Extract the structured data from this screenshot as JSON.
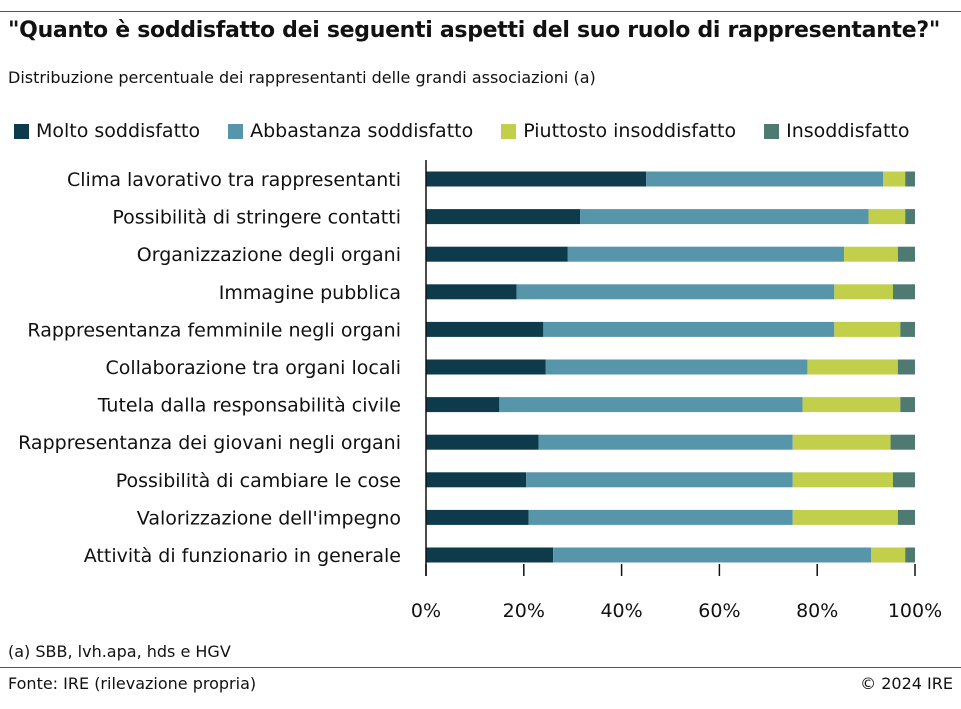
{
  "header": {
    "title": "\"Quanto è soddisfatto dei seguenti aspetti del suo ruolo di rappresentante?\"",
    "subtitle": "Distribuzione percentuale dei rappresentanti delle grandi associazioni (a)"
  },
  "footer": {
    "note": "(a) SBB, lvh.apa, hds e HGV",
    "source": "Fonte: IRE (rilevazione propria)",
    "copyright": "© 2024 IRE"
  },
  "chart_data": {
    "type": "bar",
    "orientation": "horizontal",
    "stacked": true,
    "categories": [
      "Clima lavorativo tra rappresentanti",
      "Possibilità di stringere contatti",
      "Organizzazione degli organi",
      "Immagine pubblica",
      "Rappresentanza femminile negli organi",
      "Collaborazione tra organi locali",
      "Tutela dalla responsabilità civile",
      "Rappresentanza dei giovani negli organi",
      "Possibilità di cambiare le cose",
      "Valorizzazione dell'impegno",
      "Attività di funzionario in generale"
    ],
    "series": [
      {
        "name": "Molto soddisfatto",
        "color": "#0d3b4c",
        "values": [
          45,
          31.5,
          29,
          18.5,
          24,
          24.5,
          15,
          23,
          20.5,
          21,
          26
        ]
      },
      {
        "name": "Abbastanza soddisfatto",
        "color": "#5795ab",
        "values": [
          48.5,
          59,
          56.5,
          65,
          59.5,
          53.5,
          62,
          52,
          54.5,
          54,
          65
        ]
      },
      {
        "name": "Piuttosto insoddisfatto",
        "color": "#c2cf4a",
        "values": [
          4.5,
          7.5,
          11,
          12,
          13.5,
          18.5,
          20,
          20,
          20.5,
          21.5,
          7
        ]
      },
      {
        "name": "Insoddisfatto",
        "color": "#4f7a71",
        "values": [
          2,
          2,
          3.5,
          4.5,
          3,
          3.5,
          3,
          5,
          4.5,
          3.5,
          2
        ]
      }
    ],
    "xticks": [
      "0%",
      "20%",
      "40%",
      "60%",
      "80%",
      "100%"
    ],
    "xlim": [
      0,
      100
    ],
    "legend_position": "top",
    "grid": false
  }
}
